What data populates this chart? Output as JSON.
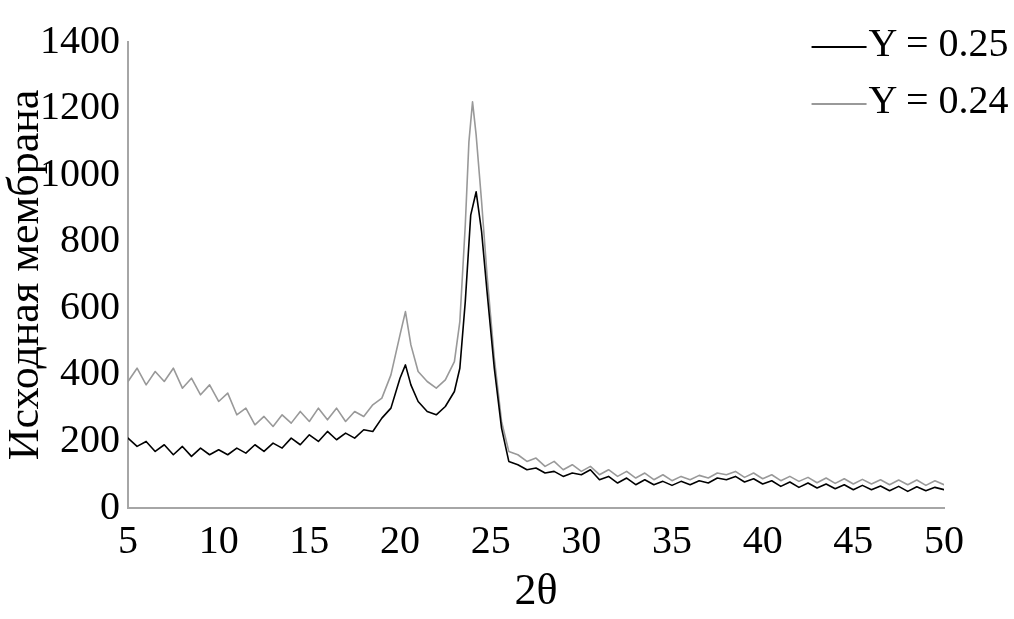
{
  "chart_data": {
    "type": "line",
    "xlabel": "2θ",
    "ylabel": "Исходная мембрана",
    "xlim": [
      5,
      50
    ],
    "xticks": [
      5,
      10,
      15,
      20,
      25,
      30,
      35,
      40,
      45,
      50
    ],
    "ylim": [
      0,
      1400
    ],
    "yticks": [
      0,
      200,
      400,
      600,
      800,
      1000,
      1200,
      1400
    ],
    "legend": "top right",
    "marker": "none",
    "line_style": "solid",
    "series": [
      {
        "name": "Y = 0.25",
        "color": "#000000",
        "x": [
          5,
          5.5,
          6,
          6.5,
          7,
          7.5,
          8,
          8.5,
          9,
          9.5,
          10,
          10.5,
          11,
          11.5,
          12,
          12.5,
          13,
          13.5,
          14,
          14.5,
          15,
          15.5,
          16,
          16.5,
          17,
          17.5,
          18,
          18.5,
          19,
          19.5,
          20,
          20.3,
          20.6,
          21,
          21.5,
          22,
          22.5,
          23,
          23.3,
          23.6,
          23.9,
          24.2,
          24.5,
          24.8,
          25.2,
          25.6,
          26,
          26.5,
          27,
          27.5,
          28,
          28.5,
          29,
          29.5,
          30,
          30.5,
          31,
          31.5,
          32,
          32.5,
          33,
          33.5,
          34,
          34.5,
          35,
          35.5,
          36,
          36.5,
          37,
          37.5,
          38,
          38.5,
          39,
          39.5,
          40,
          40.5,
          41,
          41.5,
          42,
          42.5,
          43,
          43.5,
          44,
          44.5,
          45,
          45.5,
          46,
          46.5,
          47,
          47.5,
          48,
          48.5,
          49,
          49.5,
          50
        ],
        "values": [
          210,
          185,
          200,
          170,
          190,
          160,
          185,
          155,
          180,
          160,
          175,
          160,
          180,
          165,
          190,
          170,
          195,
          180,
          210,
          190,
          220,
          200,
          230,
          205,
          225,
          210,
          235,
          230,
          270,
          300,
          390,
          430,
          370,
          320,
          290,
          280,
          305,
          350,
          420,
          620,
          880,
          950,
          830,
          650,
          420,
          240,
          140,
          130,
          115,
          120,
          105,
          110,
          95,
          105,
          100,
          115,
          85,
          95,
          75,
          90,
          70,
          85,
          70,
          80,
          68,
          80,
          70,
          82,
          75,
          90,
          85,
          95,
          78,
          88,
          72,
          82,
          65,
          78,
          62,
          75,
          60,
          72,
          58,
          70,
          55,
          68,
          55,
          66,
          52,
          65,
          50,
          64,
          52,
          62,
          55
        ]
      },
      {
        "name": "Y = 0.24",
        "color": "#999999",
        "x": [
          5,
          5.5,
          6,
          6.5,
          7,
          7.5,
          8,
          8.5,
          9,
          9.5,
          10,
          10.5,
          11,
          11.5,
          12,
          12.5,
          13,
          13.5,
          14,
          14.5,
          15,
          15.5,
          16,
          16.5,
          17,
          17.5,
          18,
          18.5,
          19,
          19.5,
          20,
          20.3,
          20.6,
          21,
          21.5,
          22,
          22.5,
          23,
          23.3,
          23.6,
          23.8,
          24,
          24.2,
          24.5,
          24.8,
          25.2,
          25.6,
          26,
          26.5,
          27,
          27.5,
          28,
          28.5,
          29,
          29.5,
          30,
          30.5,
          31,
          31.5,
          32,
          32.5,
          33,
          33.5,
          34,
          34.5,
          35,
          35.5,
          36,
          36.5,
          37,
          37.5,
          38,
          38.5,
          39,
          39.5,
          40,
          40.5,
          41,
          41.5,
          42,
          42.5,
          43,
          43.5,
          44,
          44.5,
          45,
          45.5,
          46,
          46.5,
          47,
          47.5,
          48,
          48.5,
          49,
          49.5,
          50
        ],
        "values": [
          380,
          420,
          370,
          410,
          380,
          420,
          360,
          390,
          340,
          370,
          320,
          345,
          280,
          300,
          250,
          275,
          245,
          280,
          255,
          290,
          260,
          300,
          265,
          300,
          260,
          290,
          275,
          310,
          330,
          400,
          520,
          590,
          490,
          410,
          380,
          360,
          385,
          440,
          560,
          850,
          1100,
          1220,
          1120,
          920,
          700,
          450,
          260,
          170,
          160,
          140,
          150,
          125,
          140,
          115,
          130,
          110,
          125,
          100,
          115,
          95,
          110,
          90,
          105,
          85,
          100,
          82,
          95,
          85,
          98,
          90,
          105,
          100,
          110,
          92,
          105,
          88,
          100,
          82,
          95,
          80,
          92,
          76,
          90,
          74,
          88,
          72,
          86,
          72,
          85,
          70,
          84,
          70,
          84,
          68,
          82,
          70
        ]
      }
    ]
  }
}
